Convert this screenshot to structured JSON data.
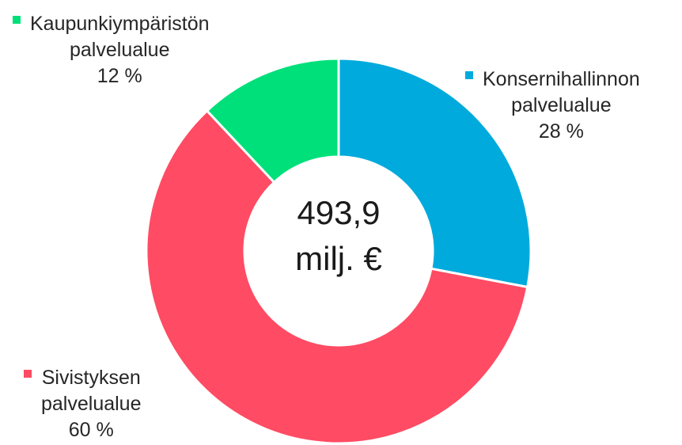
{
  "chart_data": {
    "type": "donut",
    "center_label": [
      "493,9",
      "milj. €"
    ],
    "series": [
      {
        "name": "Konsernihallinnon palvelualue",
        "color": "#00aadc",
        "values": [
          28
        ],
        "value_labels": [
          "28 %"
        ]
      },
      {
        "name": "Sivistyksen palvelualue",
        "color": "#ff4b63",
        "values": [
          60
        ],
        "value_labels": [
          "60 %"
        ]
      },
      {
        "name": "Kaupunkiympäristön palvelualue",
        "color": "#00e07a",
        "values": [
          12
        ],
        "value_labels": [
          "12 %"
        ]
      }
    ]
  }
}
